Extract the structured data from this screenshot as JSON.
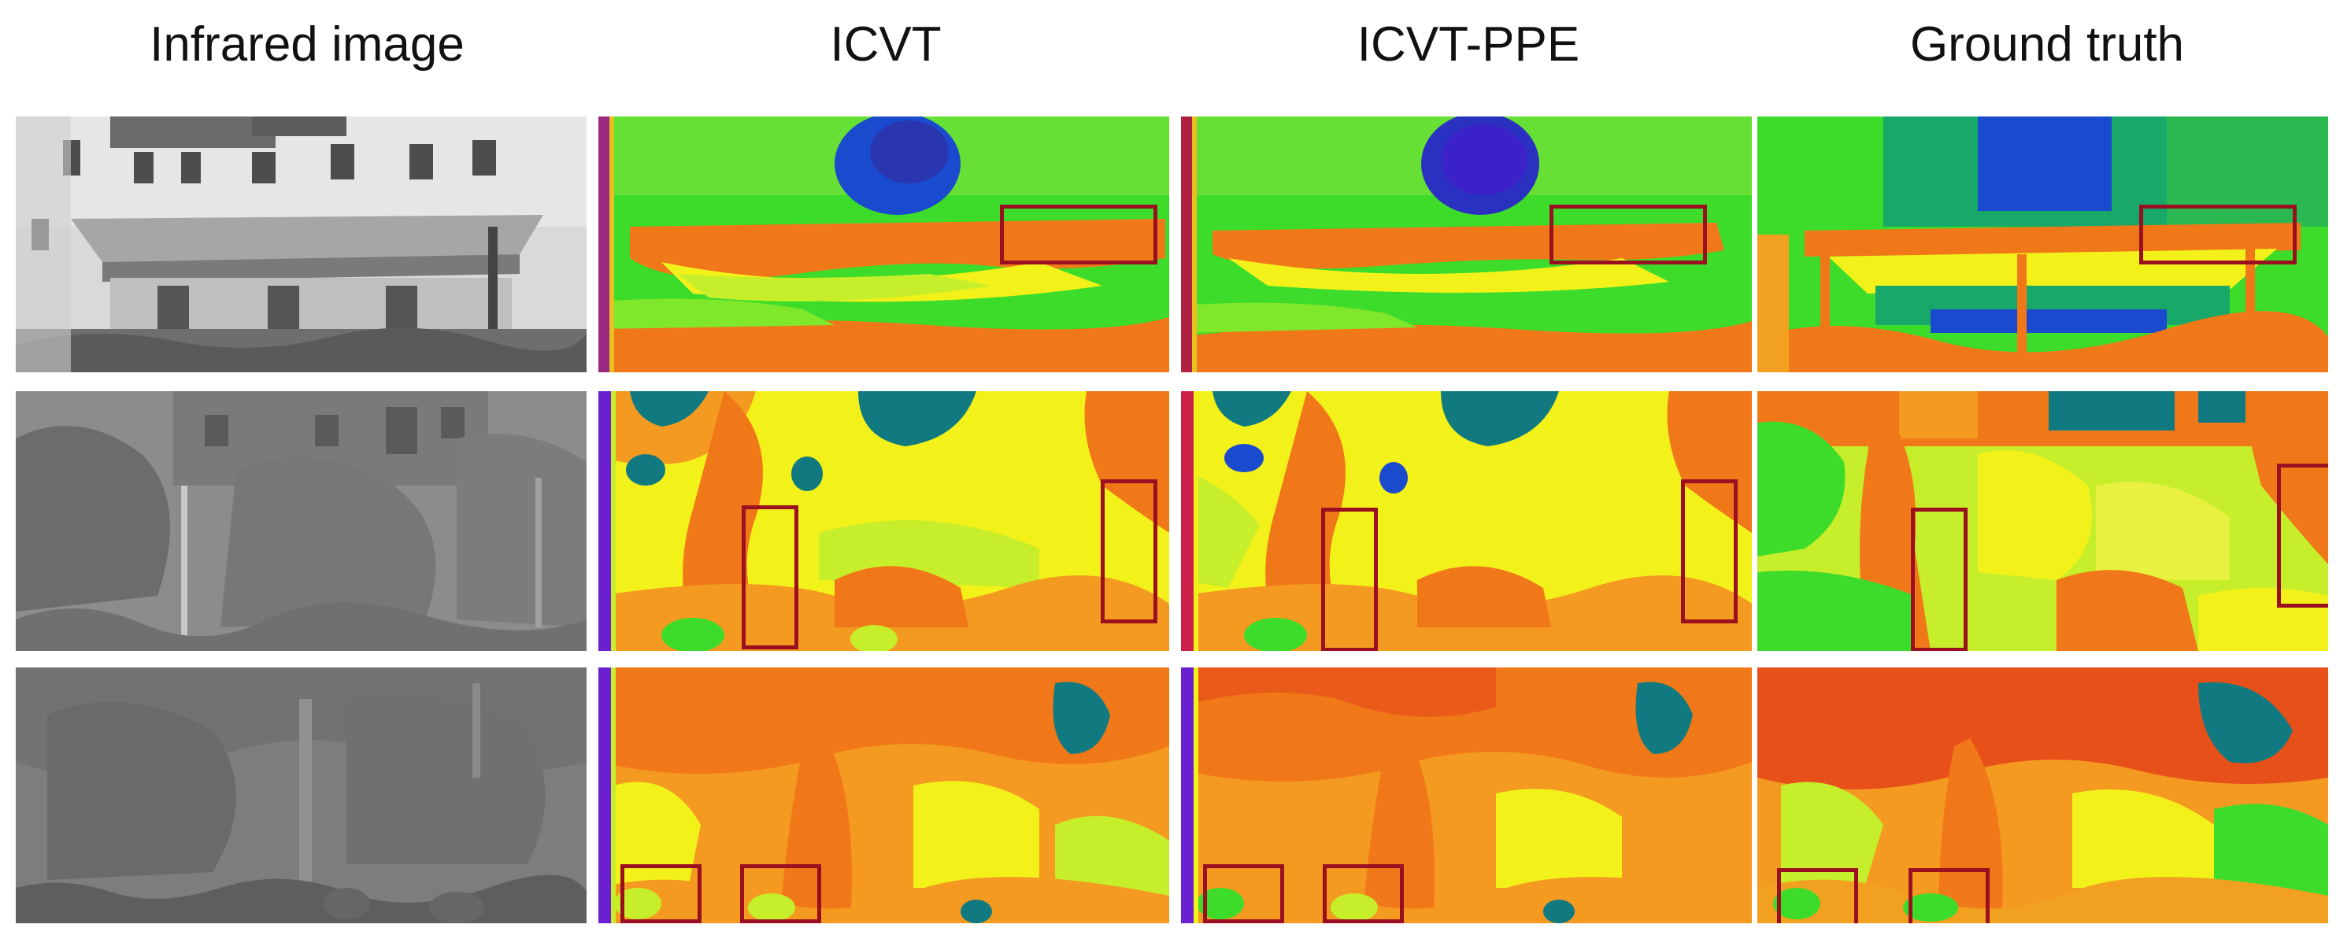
{
  "figure": {
    "columns": [
      {
        "id": "infrared",
        "title": "Infrared image"
      },
      {
        "id": "icvt",
        "title": "ICVT"
      },
      {
        "id": "icvt_ppe",
        "title": "ICVT-PPE"
      },
      {
        "id": "ground_truth",
        "title": "Ground truth"
      }
    ],
    "rows": [
      "building-canopy",
      "trees-and-building",
      "trees-close"
    ],
    "colors": {
      "highlight_box": "#9a1020",
      "depth_green": "#3ddc2a",
      "depth_yellow": "#f2f21a",
      "depth_orange": "#f07818",
      "depth_blue": "#1a4acd",
      "depth_teal": "#117a80",
      "infrared_gray": "#8c8c8c"
    }
  }
}
